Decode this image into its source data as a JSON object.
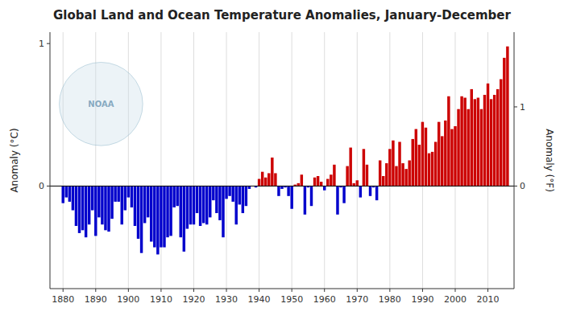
{
  "chart_data": {
    "type": "bar",
    "title": "Global Land and Ocean Temperature Anomalies, January-December",
    "ylabel": "Anomaly (°C)",
    "y2label": "Anomaly (°F)",
    "x": [
      1880,
      1881,
      1882,
      1883,
      1884,
      1885,
      1886,
      1887,
      1888,
      1889,
      1890,
      1891,
      1892,
      1893,
      1894,
      1895,
      1896,
      1897,
      1898,
      1899,
      1900,
      1901,
      1902,
      1903,
      1904,
      1905,
      1906,
      1907,
      1908,
      1909,
      1910,
      1911,
      1912,
      1913,
      1914,
      1915,
      1916,
      1917,
      1918,
      1919,
      1920,
      1921,
      1922,
      1923,
      1924,
      1925,
      1926,
      1927,
      1928,
      1929,
      1930,
      1931,
      1932,
      1933,
      1934,
      1935,
      1936,
      1937,
      1938,
      1939,
      1940,
      1941,
      1942,
      1943,
      1944,
      1945,
      1946,
      1947,
      1948,
      1949,
      1950,
      1951,
      1952,
      1953,
      1954,
      1955,
      1956,
      1957,
      1958,
      1959,
      1960,
      1961,
      1962,
      1963,
      1964,
      1965,
      1966,
      1967,
      1968,
      1969,
      1970,
      1971,
      1972,
      1973,
      1974,
      1975,
      1976,
      1977,
      1978,
      1979,
      1980,
      1981,
      1982,
      1983,
      1984,
      1985,
      1986,
      1987,
      1988,
      1989,
      1990,
      1991,
      1992,
      1993,
      1994,
      1995,
      1996,
      1997,
      1998,
      1999,
      2000,
      2001,
      2002,
      2003,
      2004,
      2005,
      2006,
      2007,
      2008,
      2009,
      2010,
      2011,
      2012,
      2013,
      2014,
      2015,
      2016
    ],
    "values": [
      -0.12,
      -0.08,
      -0.11,
      -0.17,
      -0.28,
      -0.33,
      -0.31,
      -0.36,
      -0.27,
      -0.17,
      -0.35,
      -0.22,
      -0.27,
      -0.31,
      -0.32,
      -0.23,
      -0.11,
      -0.11,
      -0.27,
      -0.17,
      -0.08,
      -0.15,
      -0.28,
      -0.37,
      -0.47,
      -0.26,
      -0.22,
      -0.39,
      -0.43,
      -0.48,
      -0.43,
      -0.43,
      -0.36,
      -0.35,
      -0.15,
      -0.14,
      -0.36,
      -0.46,
      -0.3,
      -0.27,
      -0.27,
      -0.19,
      -0.28,
      -0.26,
      -0.27,
      -0.22,
      -0.1,
      -0.19,
      -0.24,
      -0.36,
      -0.09,
      -0.07,
      -0.11,
      -0.27,
      -0.13,
      -0.19,
      -0.14,
      -0.02,
      -0.0,
      -0.01,
      0.05,
      0.1,
      0.06,
      0.09,
      0.2,
      0.09,
      -0.07,
      -0.02,
      -0.01,
      -0.07,
      -0.16,
      0.01,
      0.02,
      0.08,
      -0.2,
      -0.01,
      -0.14,
      0.06,
      0.07,
      0.03,
      -0.03,
      0.05,
      0.08,
      0.15,
      -0.2,
      -0.01,
      -0.12,
      0.14,
      0.27,
      0.02,
      0.04,
      -0.08,
      0.26,
      0.15,
      -0.07,
      -0.01,
      -0.1,
      0.18,
      0.07,
      0.16,
      0.26,
      0.32,
      0.14,
      0.31,
      0.16,
      0.12,
      0.18,
      0.33,
      0.4,
      0.29,
      0.45,
      0.41,
      0.23,
      0.24,
      0.31,
      0.45,
      0.35,
      0.46,
      0.63,
      0.4,
      0.42,
      0.54,
      0.63,
      0.62,
      0.54,
      0.68,
      0.61,
      0.62,
      0.54,
      0.64,
      0.72,
      0.61,
      0.64,
      0.68,
      0.75,
      0.9,
      0.98
    ],
    "colors": [
      "#0000cc",
      "#0000cc",
      "#0000cc",
      "#0000cc",
      "#0000cc",
      "#0000cc",
      "#0000cc",
      "#0000cc",
      "#0000cc",
      "#0000cc",
      "#0000cc",
      "#0000cc",
      "#0000cc",
      "#0000cc",
      "#0000cc",
      "#0000cc",
      "#0000cc",
      "#0000cc",
      "#0000cc",
      "#0000cc",
      "#0000cc",
      "#0000cc",
      "#0000cc",
      "#0000cc",
      "#0000cc",
      "#0000cc",
      "#0000cc",
      "#0000cc",
      "#0000cc",
      "#0000cc",
      "#0000cc",
      "#0000cc",
      "#0000cc",
      "#0000cc",
      "#0000cc",
      "#0000cc",
      "#0000cc",
      "#0000cc",
      "#0000cc",
      "#0000cc",
      "#0000cc",
      "#0000cc",
      "#0000cc",
      "#0000cc",
      "#0000cc",
      "#0000cc",
      "#0000cc",
      "#0000cc",
      "#0000cc",
      "#0000cc",
      "#0000cc",
      "#0000cc",
      "#0000cc",
      "#0000cc",
      "#0000cc",
      "#0000cc",
      "#0000cc",
      "#0000cc",
      "#cc0000",
      "#0000cc",
      "#cc0000",
      "#cc0000",
      "#cc0000",
      "#cc0000",
      "#cc0000",
      "#cc0000",
      "#0000cc",
      "#0000cc",
      "#0000cc",
      "#0000cc",
      "#0000cc",
      "#cc0000",
      "#cc0000",
      "#cc0000",
      "#0000cc",
      "#0000cc",
      "#0000cc",
      "#cc0000",
      "#cc0000",
      "#cc0000",
      "#0000cc",
      "#cc0000",
      "#cc0000",
      "#cc0000",
      "#0000cc",
      "#0000cc",
      "#0000cc",
      "#cc0000",
      "#cc0000",
      "#cc0000",
      "#cc0000",
      "#0000cc",
      "#cc0000",
      "#cc0000",
      "#0000cc",
      "#0000cc",
      "#0000cc",
      "#cc0000",
      "#cc0000",
      "#cc0000",
      "#cc0000",
      "#cc0000",
      "#cc0000",
      "#cc0000",
      "#cc0000",
      "#cc0000",
      "#cc0000",
      "#cc0000",
      "#cc0000",
      "#cc0000",
      "#cc0000",
      "#cc0000",
      "#cc0000",
      "#cc0000",
      "#cc0000",
      "#cc0000",
      "#cc0000",
      "#cc0000",
      "#cc0000",
      "#cc0000",
      "#cc0000",
      "#cc0000",
      "#cc0000",
      "#cc0000",
      "#cc0000",
      "#cc0000",
      "#cc0000",
      "#cc0000",
      "#cc0000",
      "#cc0000",
      "#cc0000",
      "#cc0000",
      "#cc0000",
      "#cc0000",
      "#cc0000",
      "#cc0000",
      "#cc0000"
    ],
    "xlim": [
      1876,
      2018
    ],
    "xticks": [
      1880,
      1890,
      1900,
      1910,
      1920,
      1930,
      1940,
      1950,
      1960,
      1970,
      1980,
      1990,
      2000,
      2010
    ],
    "ylim": [
      -0.72,
      1.08
    ],
    "yticks": [
      0,
      1
    ],
    "y2lim": [
      -1.296,
      1.944
    ],
    "y2ticks": [
      0,
      1
    ],
    "grid": "x",
    "annotations": [
      "NOAA"
    ]
  }
}
